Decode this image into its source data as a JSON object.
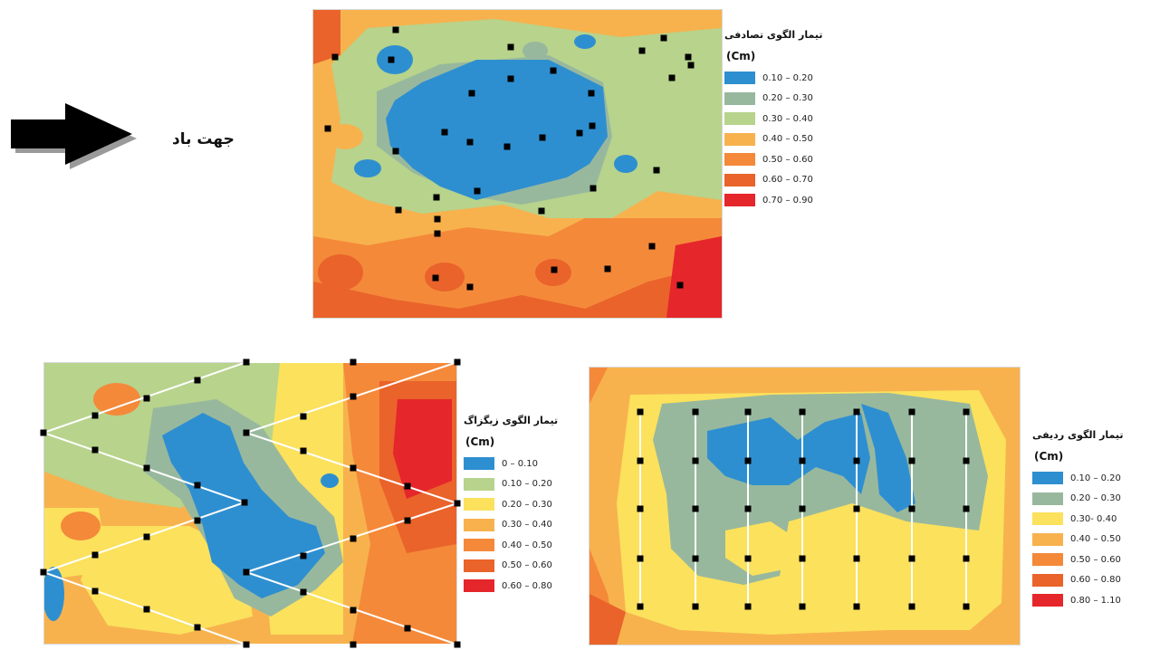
{
  "wind": {
    "label": "جهت باد",
    "icon": "arrow-right-icon"
  },
  "palette": {
    "blue": "#2e8fd0",
    "sage": "#98b89e",
    "lightgreen": "#b7d38c",
    "yellow": "#fbe15c",
    "lightorange": "#f7b24e",
    "orange": "#f4893a",
    "darkorange": "#e9632a",
    "red": "#e5262b"
  },
  "maps": [
    {
      "id": "random",
      "title": "تیمار الگوی تصادفی",
      "unit": "(Cm)",
      "legend": [
        {
          "label": "0.10 – 0.20",
          "color": "#2e8fd0"
        },
        {
          "label": "0.20 – 0.30",
          "color": "#98b89e"
        },
        {
          "label": "0.30 – 0.40",
          "color": "#b7d38c"
        },
        {
          "label": "0.40 – 0.50",
          "color": "#f7b24e"
        },
        {
          "label": "0.50 – 0.60",
          "color": "#f4893a"
        },
        {
          "label": "0.60 – 0.70",
          "color": "#e9632a"
        },
        {
          "label": "0.70 – 0.90",
          "color": "#e5262b"
        }
      ]
    },
    {
      "id": "zigzag",
      "title": "تیمار الگوی زیگزاگ",
      "unit": "(Cm)",
      "legend": [
        {
          "label": "0 – 0.10",
          "color": "#2e8fd0"
        },
        {
          "label": "0.10 – 0.20",
          "color": "#b7d38c"
        },
        {
          "label": "0.20 – 0.30",
          "color": "#fbe15c"
        },
        {
          "label": "0.30 – 0.40",
          "color": "#f7b24e"
        },
        {
          "label": "0.40 – 0.50",
          "color": "#f4893a"
        },
        {
          "label": "0.50 – 0.60",
          "color": "#e9632a"
        },
        {
          "label": "0.60 – 0.80",
          "color": "#e5262b"
        }
      ]
    },
    {
      "id": "row",
      "title": "تیمار الگوی ردیفی",
      "unit": "(Cm)",
      "legend": [
        {
          "label": "0.10 – 0.20",
          "color": "#2e8fd0"
        },
        {
          "label": "0.20 – 0.30",
          "color": "#98b89e"
        },
        {
          "label": "0.30- 0.40",
          "color": "#fbe15c"
        },
        {
          "label": "0.40 – 0.50",
          "color": "#f7b24e"
        },
        {
          "label": "0.50 – 0.60",
          "color": "#f4893a"
        },
        {
          "label": "0.60 – 0.80",
          "color": "#e9632a"
        },
        {
          "label": "0.80 – 1.10",
          "color": "#e5262b"
        }
      ]
    }
  ]
}
